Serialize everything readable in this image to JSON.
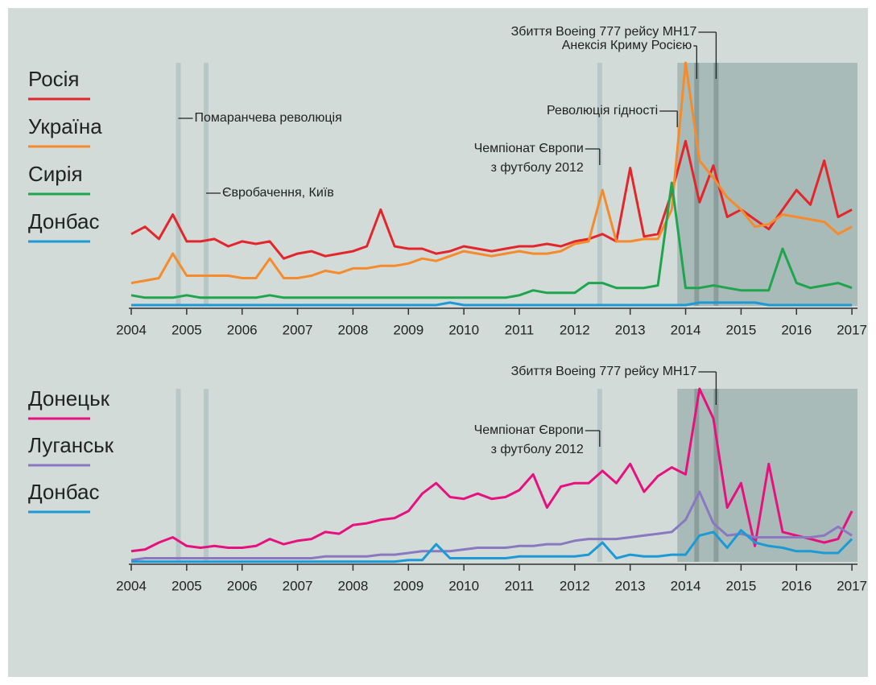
{
  "chart_data": [
    {
      "type": "line",
      "x": [
        2004,
        2004.25,
        2004.5,
        2004.75,
        2005,
        2005.25,
        2005.5,
        2005.75,
        2006,
        2006.25,
        2006.5,
        2006.75,
        2007,
        2007.25,
        2007.5,
        2007.75,
        2008,
        2008.25,
        2008.5,
        2008.75,
        2009,
        2009.25,
        2009.5,
        2009.75,
        2010,
        2010.25,
        2010.5,
        2010.75,
        2011,
        2011.25,
        2011.5,
        2011.75,
        2012,
        2012.25,
        2012.5,
        2012.75,
        2013,
        2013.25,
        2013.5,
        2013.75,
        2014,
        2014.25,
        2014.5,
        2014.75,
        2015,
        2015.25,
        2015.5,
        2015.75,
        2016,
        2016.25,
        2016.5,
        2016.75,
        2017
      ],
      "series": [
        {
          "name": "Росія",
          "color": "#e3262b",
          "values": [
            30,
            33,
            28,
            38,
            27,
            27,
            28,
            25,
            27,
            26,
            27,
            20,
            22,
            23,
            21,
            22,
            23,
            25,
            40,
            25,
            24,
            24,
            22,
            23,
            25,
            24,
            23,
            24,
            25,
            25,
            26,
            25,
            27,
            28,
            30,
            27,
            57,
            29,
            30,
            47,
            68,
            43,
            58,
            37,
            40,
            36,
            32,
            40,
            48,
            42,
            60,
            37,
            40
          ]
        },
        {
          "name": "Україна",
          "color": "#f58b2a",
          "values": [
            10,
            11,
            12,
            22,
            13,
            13,
            13,
            13,
            12,
            12,
            20,
            12,
            12,
            13,
            15,
            14,
            16,
            16,
            17,
            17,
            18,
            20,
            19,
            21,
            23,
            22,
            21,
            22,
            23,
            22,
            22,
            23,
            26,
            27,
            48,
            27,
            27,
            28,
            28,
            40,
            100,
            60,
            53,
            45,
            40,
            33,
            34,
            38,
            37,
            36,
            35,
            30,
            33
          ]
        },
        {
          "name": "Сирія",
          "color": "#1fa54d",
          "values": [
            5,
            4,
            4,
            4,
            5,
            4,
            4,
            4,
            4,
            4,
            5,
            4,
            4,
            4,
            4,
            4,
            4,
            4,
            4,
            4,
            4,
            4,
            4,
            4,
            4,
            4,
            4,
            4,
            5,
            7,
            6,
            6,
            6,
            10,
            10,
            8,
            8,
            8,
            9,
            51,
            8,
            8,
            9,
            8,
            7,
            7,
            7,
            24,
            10,
            8,
            9,
            10,
            8
          ]
        },
        {
          "name": "Донбас",
          "color": "#1b9ad6",
          "values": [
            1,
            1,
            1,
            1,
            1,
            1,
            1,
            1,
            1,
            1,
            1,
            1,
            1,
            1,
            1,
            1,
            1,
            1,
            1,
            1,
            1,
            1,
            1,
            2,
            1,
            1,
            1,
            1,
            1,
            1,
            1,
            1,
            1,
            1,
            1,
            1,
            1,
            1,
            1,
            1,
            1,
            2,
            2,
            2,
            2,
            2,
            1,
            1,
            1,
            1,
            1,
            1,
            1
          ]
        }
      ],
      "xlim": [
        2004,
        2017.1
      ],
      "xticks": [
        2004,
        2005,
        2006,
        2007,
        2008,
        2009,
        2010,
        2011,
        2012,
        2013,
        2014,
        2015,
        2016,
        2017
      ],
      "ylim": [
        0,
        100
      ],
      "legend": "top-left",
      "events": [
        {
          "label": "Помаранчева революція",
          "x": 2004.85,
          "band": "light"
        },
        {
          "label": "Євробачення, Київ",
          "x": 2005.35,
          "band": "light"
        },
        {
          "label": [
            "Чемпіонат Європи",
            "з футболу 2012"
          ],
          "x": 2012.45,
          "band": "light"
        },
        {
          "label": "Революція гідності",
          "x": 2013.85,
          "band": "region"
        },
        {
          "label": "Анексія Криму Росією",
          "x": 2014.2,
          "band": "dark"
        },
        {
          "label": "Збиття Boeing 777 рейсу MH17",
          "x": 2014.55,
          "band": "dark"
        }
      ]
    },
    {
      "type": "line",
      "x": [
        2004,
        2004.25,
        2004.5,
        2004.75,
        2005,
        2005.25,
        2005.5,
        2005.75,
        2006,
        2006.25,
        2006.5,
        2006.75,
        2007,
        2007.25,
        2007.5,
        2007.75,
        2008,
        2008.25,
        2008.5,
        2008.75,
        2009,
        2009.25,
        2009.5,
        2009.75,
        2010,
        2010.25,
        2010.5,
        2010.75,
        2011,
        2011.25,
        2011.5,
        2011.75,
        2012,
        2012.25,
        2012.5,
        2012.75,
        2013,
        2013.25,
        2013.5,
        2013.75,
        2014,
        2014.25,
        2014.5,
        2014.75,
        2015,
        2015.25,
        2015.5,
        2015.75,
        2016,
        2016.25,
        2016.5,
        2016.75,
        2017
      ],
      "series": [
        {
          "name": "Донецьк",
          "color": "#e6117f",
          "values": [
            7,
            8,
            12,
            15,
            10,
            9,
            10,
            9,
            9,
            10,
            14,
            11,
            13,
            14,
            18,
            17,
            22,
            23,
            25,
            26,
            30,
            40,
            46,
            38,
            37,
            40,
            37,
            38,
            42,
            51,
            32,
            44,
            46,
            46,
            53,
            46,
            57,
            41,
            50,
            55,
            51,
            100,
            83,
            32,
            46,
            10,
            57,
            18,
            16,
            14,
            12,
            14,
            30
          ]
        },
        {
          "name": "Луганськ",
          "color": "#8a79c0",
          "values": [
            2,
            3,
            3,
            3,
            3,
            3,
            3,
            3,
            3,
            3,
            3,
            3,
            3,
            3,
            4,
            4,
            4,
            4,
            5,
            5,
            6,
            7,
            7,
            7,
            8,
            9,
            9,
            9,
            10,
            10,
            11,
            11,
            13,
            14,
            14,
            14,
            15,
            16,
            17,
            18,
            25,
            41,
            23,
            16,
            17,
            15,
            15,
            15,
            15,
            15,
            16,
            21,
            16
          ]
        },
        {
          "name": "Донбас",
          "color": "#1b9ad6",
          "values": [
            1,
            1,
            1,
            1,
            1,
            1,
            1,
            1,
            1,
            1,
            1,
            1,
            1,
            1,
            1,
            1,
            1,
            1,
            1,
            1,
            2,
            2,
            11,
            3,
            3,
            3,
            3,
            3,
            4,
            4,
            4,
            4,
            4,
            5,
            12,
            3,
            5,
            4,
            4,
            5,
            5,
            16,
            18,
            9,
            19,
            12,
            10,
            9,
            7,
            7,
            6,
            6,
            14
          ]
        }
      ],
      "xlim": [
        2004,
        2017.1
      ],
      "xticks": [
        2004,
        2005,
        2006,
        2007,
        2008,
        2009,
        2010,
        2011,
        2012,
        2013,
        2014,
        2015,
        2016,
        2017
      ],
      "ylim": [
        0,
        100
      ],
      "legend": "top-left",
      "events": [
        {
          "label": null,
          "x": 2004.85,
          "band": "light"
        },
        {
          "label": null,
          "x": 2005.35,
          "band": "light"
        },
        {
          "label": [
            "Чемпіонат Європи",
            "з футболу 2012"
          ],
          "x": 2012.45,
          "band": "light"
        },
        {
          "label": null,
          "x": 2013.85,
          "band": "region"
        },
        {
          "label": null,
          "x": 2014.2,
          "band": "dark"
        },
        {
          "label": "Збиття Boeing 777 рейсу MH17",
          "x": 2014.55,
          "band": "dark"
        }
      ]
    }
  ]
}
